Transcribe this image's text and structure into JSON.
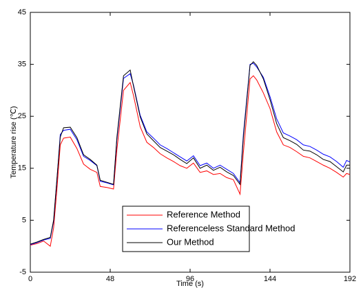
{
  "chart_data": {
    "type": "line",
    "x_label": "Time (s)",
    "y_label": "Temperature rise (℃)",
    "xlim": [
      0,
      192
    ],
    "xticks": [
      0,
      48,
      96,
      144,
      192
    ],
    "ylim": [
      -5,
      45
    ],
    "yticks": [
      -5,
      5,
      15,
      25,
      35,
      45
    ],
    "legend": "lower center",
    "x": [
      0,
      4,
      8,
      12,
      14,
      16,
      18,
      20,
      24,
      28,
      32,
      36,
      40,
      42,
      46,
      50,
      52,
      56,
      60,
      62,
      66,
      70,
      74,
      78,
      82,
      86,
      90,
      94,
      98,
      102,
      106,
      110,
      114,
      118,
      122,
      126,
      128,
      132,
      134,
      136,
      140,
      144,
      148,
      152,
      156,
      160,
      164,
      168,
      172,
      176,
      180,
      184,
      188,
      190,
      192
    ],
    "series": [
      {
        "name": "Reference Method",
        "color": "#ff0000",
        "values": [
          0.2,
          0.5,
          1.0,
          0.0,
          3.5,
          11,
          19.5,
          20.8,
          21,
          18.8,
          15.8,
          14.8,
          14.2,
          11.5,
          11.3,
          11.0,
          18.5,
          30,
          31.5,
          29,
          23,
          20,
          19,
          17.8,
          17,
          16.3,
          15.5,
          15,
          16,
          14.2,
          14.5,
          13.8,
          14,
          13.2,
          12.8,
          10,
          18,
          32.2,
          32.8,
          32,
          29.5,
          26.5,
          22,
          19.5,
          19,
          18.2,
          17.3,
          17,
          16.3,
          15.6,
          15,
          14.2,
          13.3,
          14,
          13.8
        ]
      },
      {
        "name": "Referenceless Standard Method",
        "color": "#0000ff",
        "values": [
          0.3,
          0.7,
          1.2,
          1.5,
          4.8,
          12.8,
          21.5,
          22.3,
          22.5,
          20.5,
          17.3,
          16.5,
          15.5,
          12.5,
          12.2,
          11.8,
          20.5,
          32.3,
          33.2,
          31,
          25.2,
          22,
          20.8,
          19.5,
          18.8,
          18,
          17.2,
          16.4,
          17.4,
          15.5,
          16,
          15,
          15.6,
          14.8,
          14,
          12.2,
          21.5,
          35,
          35.2,
          34.5,
          32.5,
          28.8,
          24.5,
          21.8,
          21.2,
          20.5,
          19.5,
          19.2,
          18.5,
          17.7,
          17.2,
          16.3,
          15.2,
          16.5,
          16.2
        ]
      },
      {
        "name": "Our Method",
        "color": "#000000",
        "values": [
          0.4,
          0.8,
          1.3,
          1.7,
          5,
          13,
          21,
          22.8,
          22.9,
          20.9,
          17.6,
          16.7,
          15.6,
          12.7,
          12.3,
          11.9,
          20.9,
          32.8,
          33.9,
          30.8,
          24.9,
          21.6,
          20.3,
          19,
          18.3,
          17.6,
          16.7,
          15.9,
          17,
          15,
          15.6,
          14.6,
          15.2,
          14.3,
          13.6,
          11.9,
          20.9,
          34.8,
          35.5,
          34.8,
          32.2,
          28.2,
          23.6,
          20.9,
          20.3,
          19.6,
          18.5,
          18.3,
          17.6,
          16.7,
          16.3,
          15.3,
          14.3,
          15.6,
          15.6
        ]
      }
    ]
  }
}
